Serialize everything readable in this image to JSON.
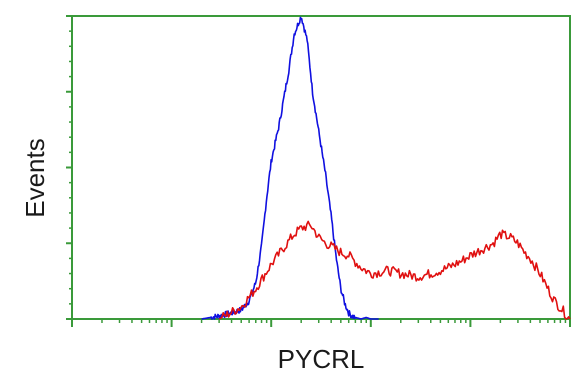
{
  "chart_data": {
    "type": "line",
    "title": "",
    "xlabel": "PYCRL",
    "ylabel": "Events",
    "xscale": "log",
    "xlim": [
      0.1,
      10000
    ],
    "ylim": [
      0,
      100
    ],
    "grid": false,
    "legend": "none",
    "series": [
      {
        "color": "#1010e0",
        "x": [
          2,
          3,
          4,
          5,
          6,
          7,
          8,
          9,
          10,
          12,
          15,
          17,
          20,
          23,
          26,
          30,
          35,
          40,
          45,
          50,
          55,
          60,
          65,
          70,
          80,
          90,
          100,
          120
        ],
        "y": [
          0,
          1,
          2,
          3,
          6,
          12,
          24,
          40,
          52,
          64,
          82,
          94,
          100,
          92,
          75,
          62,
          48,
          34,
          20,
          10,
          5,
          2,
          1,
          0.5,
          0,
          0.5,
          0,
          0
        ]
      },
      {
        "color": "#e01010",
        "x": [
          3,
          5,
          7,
          10,
          13,
          17,
          20,
          25,
          30,
          35,
          40,
          50,
          60,
          80,
          100,
          150,
          200,
          300,
          400,
          500,
          600,
          800,
          1000,
          1300,
          1700,
          2000,
          2500,
          3000,
          3500,
          4000,
          5000,
          6000,
          7000,
          10000
        ],
        "y": [
          0,
          4,
          10,
          18,
          23,
          28,
          30,
          31,
          27,
          25,
          24,
          22,
          21,
          17,
          15,
          16,
          15,
          14,
          15,
          16,
          17,
          19,
          21,
          23,
          25,
          28,
          27,
          25,
          22,
          20,
          15,
          10,
          6,
          0
        ]
      }
    ]
  }
}
